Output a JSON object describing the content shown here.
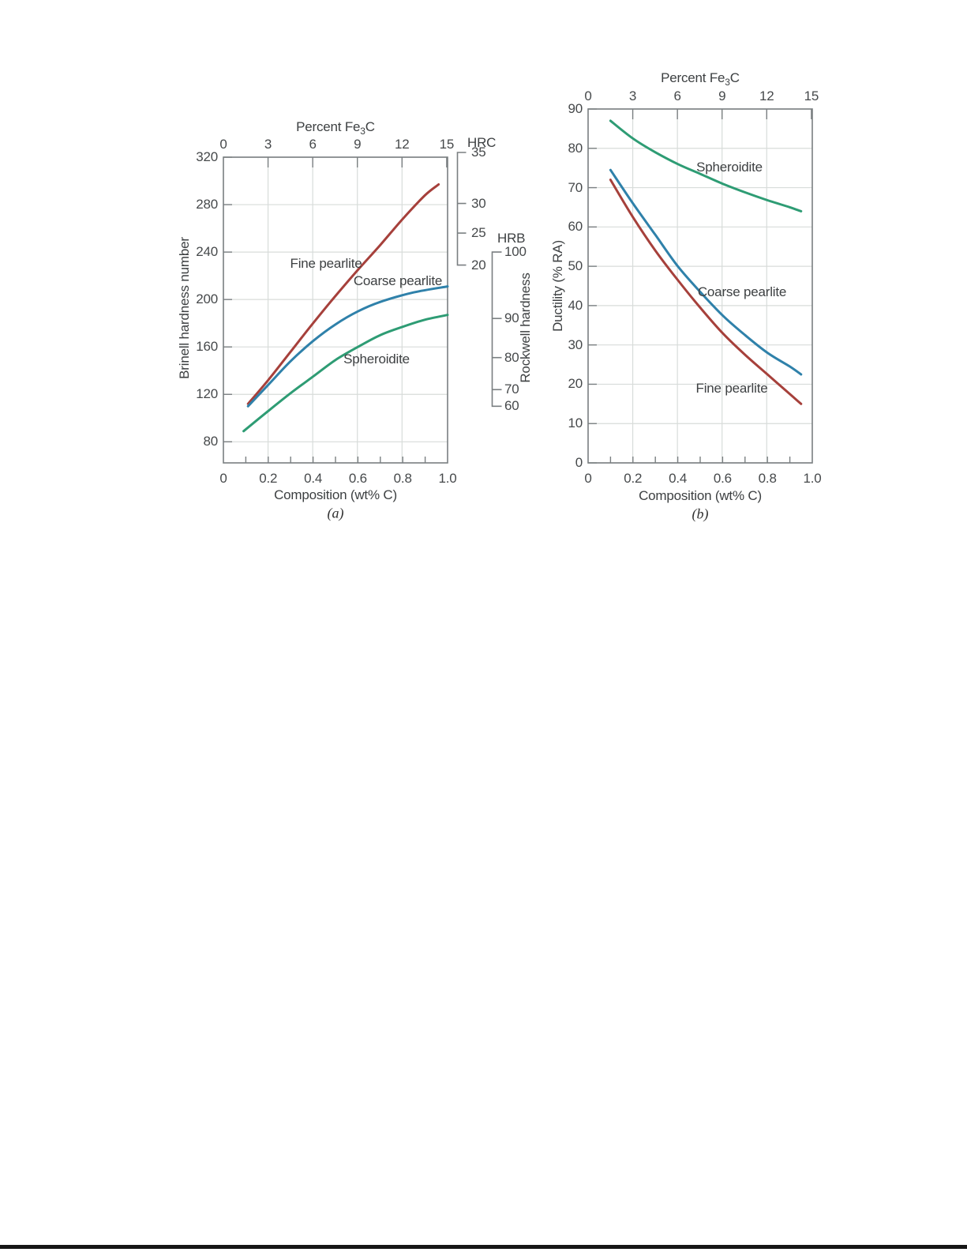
{
  "colors": {
    "fine_pearlite": "#a6403b",
    "coarse_pearlite": "#2f81aa",
    "spheroidite": "#2e9c74",
    "grid": "#d8dcda",
    "axis": "#7a7f81",
    "text": "#3d4042"
  },
  "chart_data": [
    {
      "id": "a",
      "type": "line",
      "panel_label": "(a)",
      "top_axis": {
        "title_pre": "Percent Fe",
        "title_sub": "3",
        "title_post": "C",
        "ticks": [
          0,
          3,
          6,
          9,
          12,
          15
        ]
      },
      "xlabel": "Composition (wt% C)",
      "ylabel": "Brinell hardness number",
      "xlim": [
        0,
        1.0
      ],
      "ylim": [
        62,
        320
      ],
      "grid": true,
      "x_ticks": [
        "0",
        "0.2",
        "0.4",
        "0.6",
        "0.8",
        "1.0"
      ],
      "y_ticks": [
        320,
        280,
        240,
        200,
        160,
        120,
        80
      ],
      "series": [
        {
          "name": "Fine pearlite",
          "color_key": "fine_pearlite",
          "points": [
            [
              0.11,
              112
            ],
            [
              0.2,
              132
            ],
            [
              0.3,
              156
            ],
            [
              0.4,
              180
            ],
            [
              0.5,
              203
            ],
            [
              0.6,
              225
            ],
            [
              0.7,
              246
            ],
            [
              0.8,
              268
            ],
            [
              0.9,
              288
            ],
            [
              0.96,
              297
            ]
          ]
        },
        {
          "name": "Coarse pearlite",
          "color_key": "coarse_pearlite",
          "points": [
            [
              0.11,
              110
            ],
            [
              0.2,
              128
            ],
            [
              0.3,
              148
            ],
            [
              0.4,
              165
            ],
            [
              0.5,
              179
            ],
            [
              0.6,
              190
            ],
            [
              0.7,
              198
            ],
            [
              0.85,
              206
            ],
            [
              1.0,
              211
            ]
          ]
        },
        {
          "name": "Spheroidite",
          "color_key": "spheroidite",
          "points": [
            [
              0.09,
              89
            ],
            [
              0.2,
              106
            ],
            [
              0.3,
              121
            ],
            [
              0.4,
              135
            ],
            [
              0.5,
              149
            ],
            [
              0.6,
              160
            ],
            [
              0.7,
              170
            ],
            [
              0.8,
              177
            ],
            [
              0.9,
              183
            ],
            [
              1.0,
              187
            ]
          ]
        }
      ],
      "right_scales": [
        {
          "name": "HRC",
          "axis_label": null,
          "ticks": [
            {
              "label": 35,
              "bhn": 324
            },
            {
              "label": 30,
              "bhn": 281
            },
            {
              "label": 25,
              "bhn": 256
            },
            {
              "label": 20,
              "bhn": 229
            }
          ]
        },
        {
          "name": "HRB",
          "axis_label": "Rockwell hardness",
          "ticks": [
            {
              "label": 100,
              "bhn": 240
            },
            {
              "label": 90,
              "bhn": 184
            },
            {
              "label": 80,
              "bhn": 151
            },
            {
              "label": 70,
              "bhn": 124
            },
            {
              "label": 60,
              "bhn": 110
            }
          ]
        }
      ]
    },
    {
      "id": "b",
      "type": "line",
      "panel_label": "(b)",
      "top_axis": {
        "title_pre": "Percent Fe",
        "title_sub": "3",
        "title_post": "C",
        "ticks": [
          0,
          3,
          6,
          9,
          12,
          15
        ]
      },
      "xlabel": "Composition (wt% C)",
      "ylabel": "Ductility (% RA)",
      "xlim": [
        0,
        1.0
      ],
      "ylim": [
        0,
        90
      ],
      "grid": true,
      "x_ticks": [
        "0",
        "0.2",
        "0.4",
        "0.6",
        "0.8",
        "1.0"
      ],
      "y_ticks": [
        90,
        80,
        70,
        60,
        50,
        40,
        30,
        20,
        10,
        0
      ],
      "series": [
        {
          "name": "Spheroidite",
          "color_key": "spheroidite",
          "points": [
            [
              0.1,
              87
            ],
            [
              0.2,
              82.5
            ],
            [
              0.3,
              79
            ],
            [
              0.4,
              76
            ],
            [
              0.5,
              73.5
            ],
            [
              0.6,
              71
            ],
            [
              0.7,
              68.8
            ],
            [
              0.8,
              66.8
            ],
            [
              0.9,
              65
            ],
            [
              0.95,
              64
            ]
          ]
        },
        {
          "name": "Coarse pearlite",
          "color_key": "coarse_pearlite",
          "points": [
            [
              0.1,
              74.5
            ],
            [
              0.2,
              66
            ],
            [
              0.3,
              58
            ],
            [
              0.4,
              50
            ],
            [
              0.5,
              43.5
            ],
            [
              0.6,
              37.5
            ],
            [
              0.7,
              32.5
            ],
            [
              0.8,
              28
            ],
            [
              0.9,
              24.5
            ],
            [
              0.95,
              22.5
            ]
          ]
        },
        {
          "name": "Fine pearlite",
          "color_key": "fine_pearlite",
          "points": [
            [
              0.1,
              72
            ],
            [
              0.2,
              62.5
            ],
            [
              0.3,
              54
            ],
            [
              0.4,
              46.5
            ],
            [
              0.5,
              39.5
            ],
            [
              0.6,
              33
            ],
            [
              0.7,
              27.5
            ],
            [
              0.8,
              22.5
            ],
            [
              0.9,
              17.5
            ],
            [
              0.95,
              15
            ]
          ]
        }
      ]
    }
  ]
}
